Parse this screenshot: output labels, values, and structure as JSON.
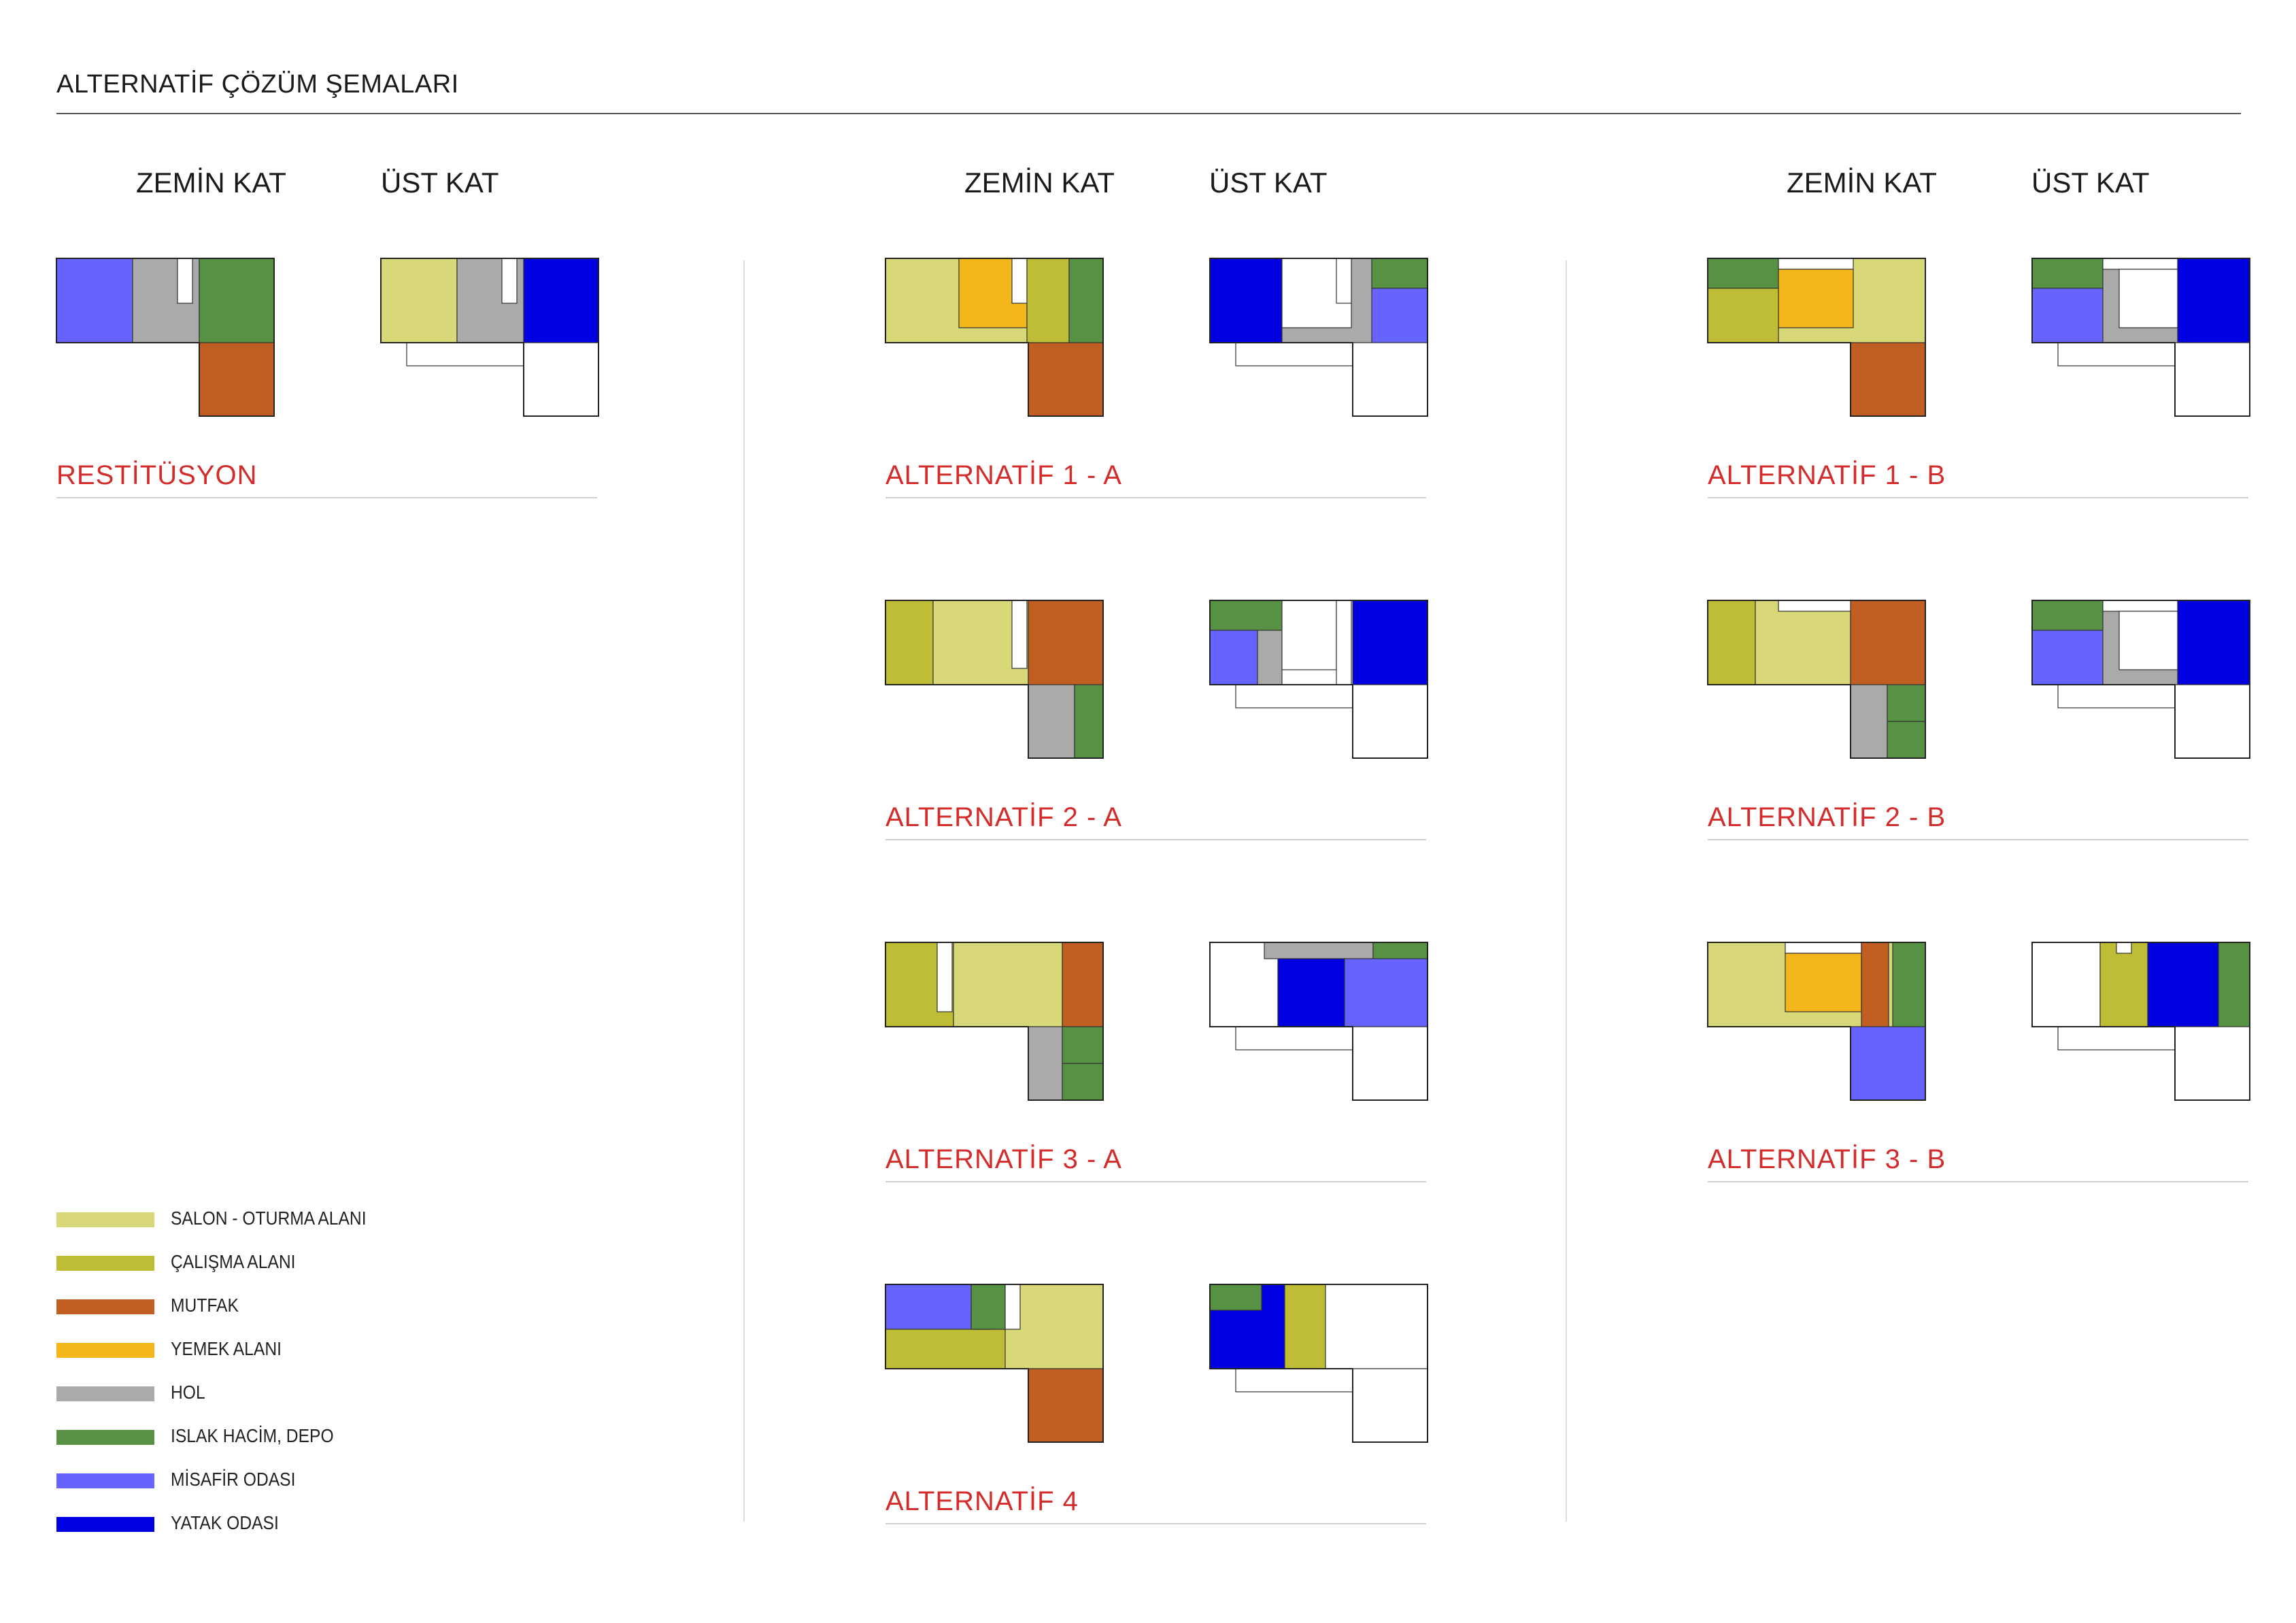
{
  "page_title": "ALTERNATİF ÇÖZÜM ŞEMALARI",
  "headers": {
    "ground": "ZEMİN KAT",
    "upper": "ÜST KAT"
  },
  "colors": {
    "salon": "#d9d878",
    "calisma": "#bfbc36",
    "mutfak": "#c15f22",
    "yemek": "#f3b61b",
    "hol": "#aaaaaa",
    "islak": "#569144",
    "misafir": "#6663ff",
    "yatak": "#0000e0"
  },
  "schemes": [
    {
      "label": "RESTİTÜSYON"
    },
    {
      "label": "ALTERNATİF 1 - A"
    },
    {
      "label": "ALTERNATİF 1 - B"
    },
    {
      "label": "ALTERNATİF 2 - A"
    },
    {
      "label": "ALTERNATİF 2 - B"
    },
    {
      "label": "ALTERNATİF 3 - A"
    },
    {
      "label": "ALTERNATİF 3 - B"
    },
    {
      "label": "ALTERNATİF 4"
    }
  ],
  "legend": [
    {
      "label": "SALON - OTURMA ALANI",
      "color": "#d9d878"
    },
    {
      "label": "ÇALIŞMA ALANI",
      "color": "#bfbc36"
    },
    {
      "label": "MUTFAK",
      "color": "#c15f22"
    },
    {
      "label": "YEMEK ALANI",
      "color": "#f3b61b"
    },
    {
      "label": "HOL",
      "color": "#aaaaaa"
    },
    {
      "label": "ISLAK HACİM, DEPO",
      "color": "#569144"
    },
    {
      "label": "MİSAFİR ODASI",
      "color": "#6663ff"
    },
    {
      "label": "YATAK ODASI",
      "color": "#0000e0"
    }
  ]
}
